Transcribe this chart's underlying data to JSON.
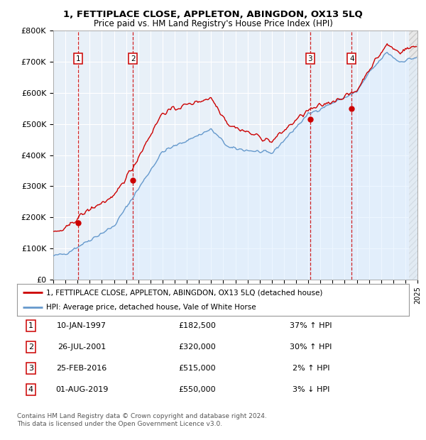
{
  "title": "1, FETTIPLACE CLOSE, APPLETON, ABINGDON, OX13 5LQ",
  "subtitle": "Price paid vs. HM Land Registry's House Price Index (HPI)",
  "ylim": [
    0,
    800000
  ],
  "yticks": [
    0,
    100000,
    200000,
    300000,
    400000,
    500000,
    600000,
    700000,
    800000
  ],
  "ytick_labels": [
    "£0",
    "£100K",
    "£200K",
    "£300K",
    "£400K",
    "£500K",
    "£600K",
    "£700K",
    "£800K"
  ],
  "sales": [
    {
      "date_num": 1997.03,
      "price": 182500,
      "label": "1"
    },
    {
      "date_num": 2001.57,
      "price": 320000,
      "label": "2"
    },
    {
      "date_num": 2016.15,
      "price": 515000,
      "label": "3"
    },
    {
      "date_num": 2019.58,
      "price": 550000,
      "label": "4"
    }
  ],
  "sale_color": "#cc0000",
  "hpi_color": "#6699cc",
  "hpi_fill_color": "#ddeeff",
  "legend_property": "1, FETTIPLACE CLOSE, APPLETON, ABINGDON, OX13 5LQ (detached house)",
  "legend_hpi": "HPI: Average price, detached house, Vale of White Horse",
  "table": [
    {
      "num": "1",
      "date": "10-JAN-1997",
      "price": "£182,500",
      "change": "37% ↑ HPI"
    },
    {
      "num": "2",
      "date": "26-JUL-2001",
      "price": "£320,000",
      "change": "30% ↑ HPI"
    },
    {
      "num": "3",
      "date": "25-FEB-2016",
      "price": "£515,000",
      "change": "2% ↑ HPI"
    },
    {
      "num": "4",
      "date": "01-AUG-2019",
      "price": "£550,000",
      "change": "3% ↓ HPI"
    }
  ],
  "footnote1": "Contains HM Land Registry data © Crown copyright and database right 2024.",
  "footnote2": "This data is licensed under the Open Government Licence v3.0.",
  "plot_bg": "#ffffff",
  "chart_bg": "#e8f0f8"
}
